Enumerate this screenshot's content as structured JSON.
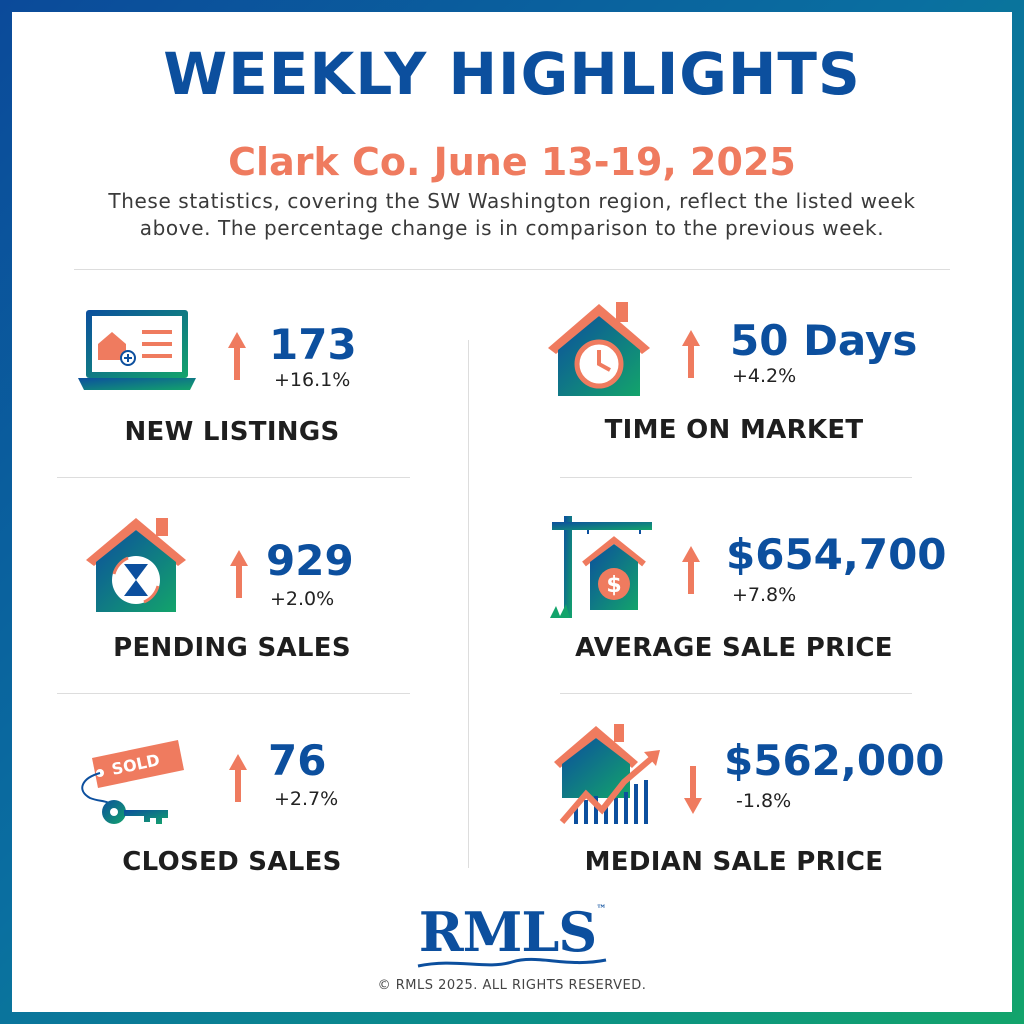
{
  "header": {
    "title": "WEEKLY HIGHLIGHTS",
    "subtitle": "Clark Co. June 13-19, 2025",
    "description_line1": "These statistics, covering the SW Washington region, reflect the listed week",
    "description_line2": "above. The percentage change is in comparison to the previous week."
  },
  "colors": {
    "primary_blue": "#0c4f9e",
    "accent_coral": "#ef7b5f",
    "teal": "#0a8f88",
    "green": "#13a46b"
  },
  "stats": {
    "new_listings": {
      "value": "173",
      "change": "+16.1%",
      "label": "NEW LISTINGS",
      "direction": "up",
      "icon": "laptop-house-icon"
    },
    "time_on_market": {
      "value": "50 Days",
      "change": "+4.2%",
      "label": "TIME ON MARKET",
      "direction": "up",
      "icon": "house-clock-icon"
    },
    "pending_sales": {
      "value": "929",
      "change": "+2.0%",
      "label": "PENDING SALES",
      "direction": "up",
      "icon": "house-hourglass-icon"
    },
    "average_sale_price": {
      "value": "$654,700",
      "change": "+7.8%",
      "label": "AVERAGE SALE PRICE",
      "direction": "up",
      "icon": "house-sign-dollar-icon"
    },
    "closed_sales": {
      "value": "76",
      "change": "+2.7%",
      "label": "CLOSED SALES",
      "direction": "up",
      "icon": "sold-tag-key-icon",
      "tag_text": "SOLD"
    },
    "median_sale_price": {
      "value": "$562,000",
      "change": "-1.8%",
      "label": "MEDIAN SALE PRICE",
      "direction": "down",
      "icon": "house-chart-icon"
    }
  },
  "footer": {
    "logo_text": "RMLS",
    "trademark": "™",
    "copyright": "© RMLS 2025. ALL RIGHTS RESERVED."
  }
}
